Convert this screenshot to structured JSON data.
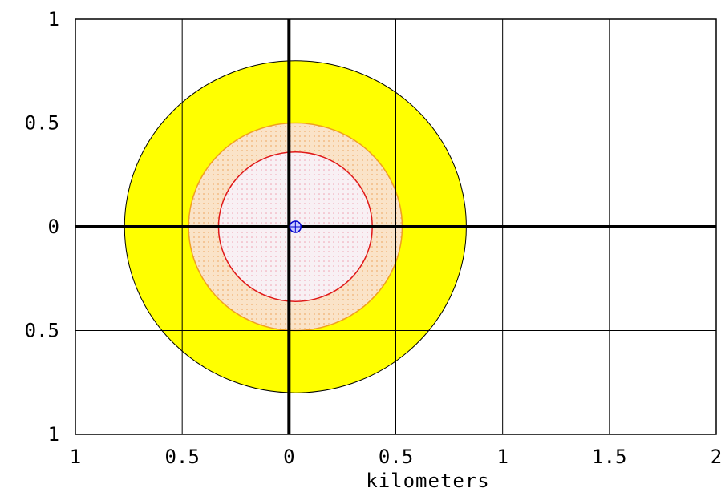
{
  "chart_data": {
    "type": "other",
    "xlabel": "kilometers",
    "ylabel": "",
    "xlim": [
      -1,
      2
    ],
    "ylim": [
      -1,
      1
    ],
    "x_ticks": [
      -1,
      -0.5,
      0,
      0.5,
      1,
      1.5,
      2
    ],
    "y_ticks": [
      -1,
      -0.5,
      0,
      0.5,
      1
    ],
    "x_tick_labels": [
      "1",
      "0.5",
      "0",
      "0.5",
      "1",
      "1.5",
      "2"
    ],
    "y_tick_labels": [
      "1",
      "0.5",
      "0",
      "0.5",
      "1"
    ],
    "grid": true,
    "center": {
      "x": 0.03,
      "y": 0.0
    },
    "rings": [
      {
        "radius_km": 0.8,
        "fill": "#ffff00",
        "stroke": "#000000"
      },
      {
        "radius_km": 0.5,
        "fill": "#fae3c8",
        "stroke": "#f0a020",
        "pattern": "dots"
      },
      {
        "radius_km": 0.36,
        "fill": "#f5eef2",
        "stroke": "#e01818",
        "pattern": "dots"
      }
    ],
    "marker": {
      "type": "crosshair-circle",
      "color": "#0000cc",
      "x": 0.03,
      "y": 0.0
    }
  }
}
